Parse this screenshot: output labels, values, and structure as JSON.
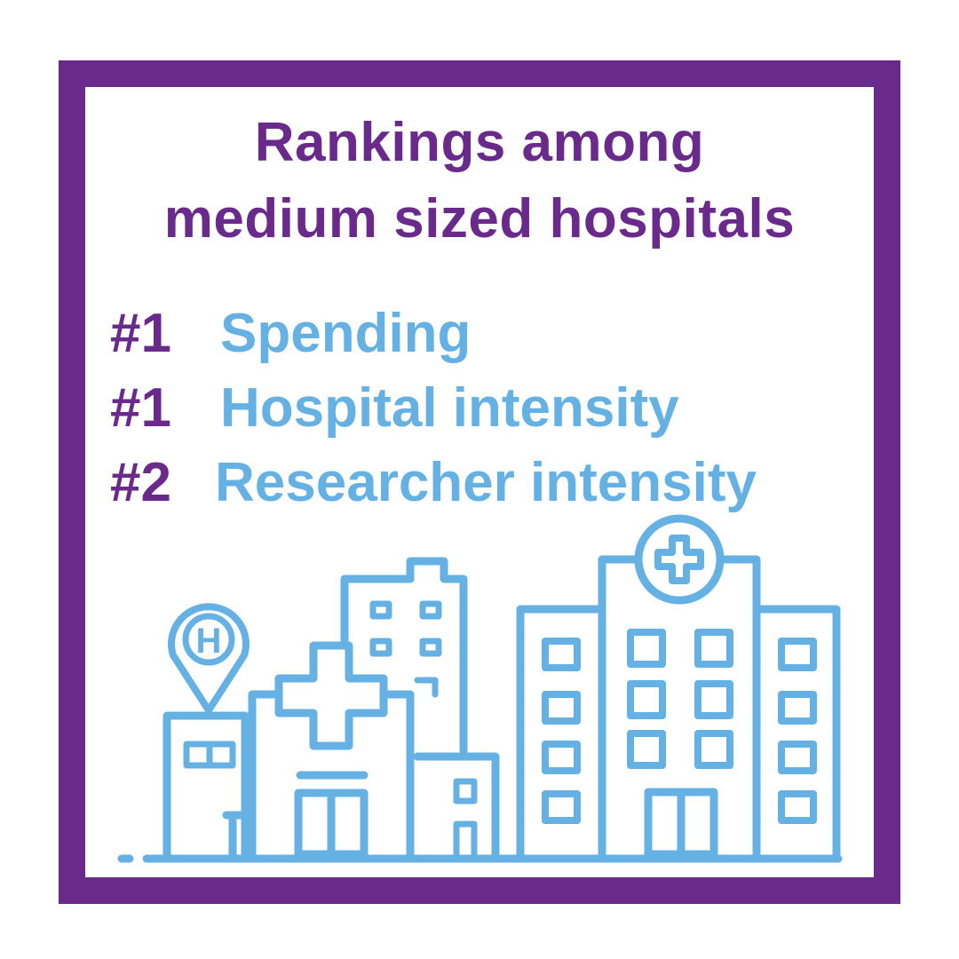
{
  "title": {
    "line1": "Rankings among",
    "line2": "medium sized hospitals"
  },
  "rankings": [
    {
      "rank": "#1",
      "label": "Spending"
    },
    {
      "rank": "#1",
      "label": "Hospital intensity"
    },
    {
      "rank": "#2",
      "label": "Researcher intensity"
    }
  ],
  "illustration": {
    "pin_letter": "H",
    "icons": [
      "hospital-pin-icon",
      "medical-cross-icon",
      "hospital-buildings-icon"
    ]
  },
  "colors": {
    "frame": "#6a2a8c",
    "title": "#6a2a8c",
    "rank_number": "#6a2a8c",
    "rank_label": "#66b1e4",
    "illustration": "#66b1e4",
    "background": "#ffffff"
  }
}
